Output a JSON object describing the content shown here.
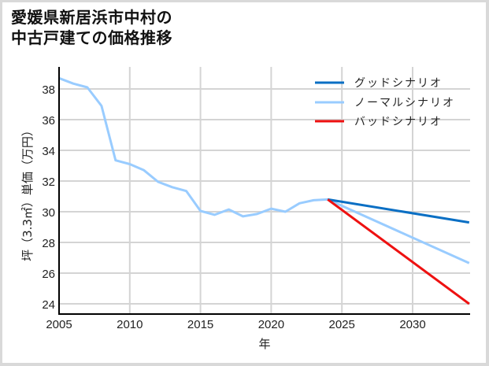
{
  "title_line1": "愛媛県新居浜市中村の",
  "title_line2": "中古戸建ての価格推移",
  "chart_data": {
    "type": "line",
    "title": "愛媛県新居浜市中村の中古戸建ての価格推移",
    "xlabel": "年",
    "ylabel": "坪（3.3㎡）単価（万円）",
    "xlim": [
      2005,
      2034
    ],
    "ylim": [
      23.3,
      39.2
    ],
    "xticks": [
      2005,
      2010,
      2015,
      2020,
      2025,
      2030
    ],
    "yticks": [
      24,
      26,
      28,
      30,
      32,
      34,
      36,
      38
    ],
    "grid": true,
    "legend_position": "upper right",
    "series": [
      {
        "name": "グッドシナリオ",
        "color": "#0a6fc4",
        "x": [
          2024,
          2034
        ],
        "values": [
          30.8,
          29.3
        ]
      },
      {
        "name": "ノーマルシナリオ",
        "color": "#99ccff",
        "x": [
          2005,
          2006,
          2007,
          2008,
          2009,
          2010,
          2011,
          2012,
          2013,
          2014,
          2015,
          2016,
          2017,
          2018,
          2019,
          2020,
          2021,
          2022,
          2023,
          2024,
          2034
        ],
        "values": [
          38.7,
          38.35,
          38.1,
          36.9,
          33.35,
          33.1,
          32.7,
          31.95,
          31.6,
          31.35,
          30.05,
          29.8,
          30.15,
          29.7,
          29.85,
          30.2,
          30.0,
          30.55,
          30.75,
          30.8,
          26.65
        ]
      },
      {
        "name": "バッドシナリオ",
        "color": "#ee1111",
        "x": [
          2024,
          2034
        ],
        "values": [
          30.8,
          24.0
        ]
      }
    ]
  },
  "axis": {
    "x_label": "年",
    "y_label": "坪（3.3㎡）単価（万円）",
    "x_ticks": [
      "2005",
      "2010",
      "2015",
      "2020",
      "2025",
      "2030"
    ],
    "y_ticks": [
      "24",
      "26",
      "28",
      "30",
      "32",
      "34",
      "36",
      "38"
    ]
  },
  "legend": {
    "good": "グッドシナリオ",
    "normal": "ノーマルシナリオ",
    "bad": "バッドシナリオ"
  }
}
